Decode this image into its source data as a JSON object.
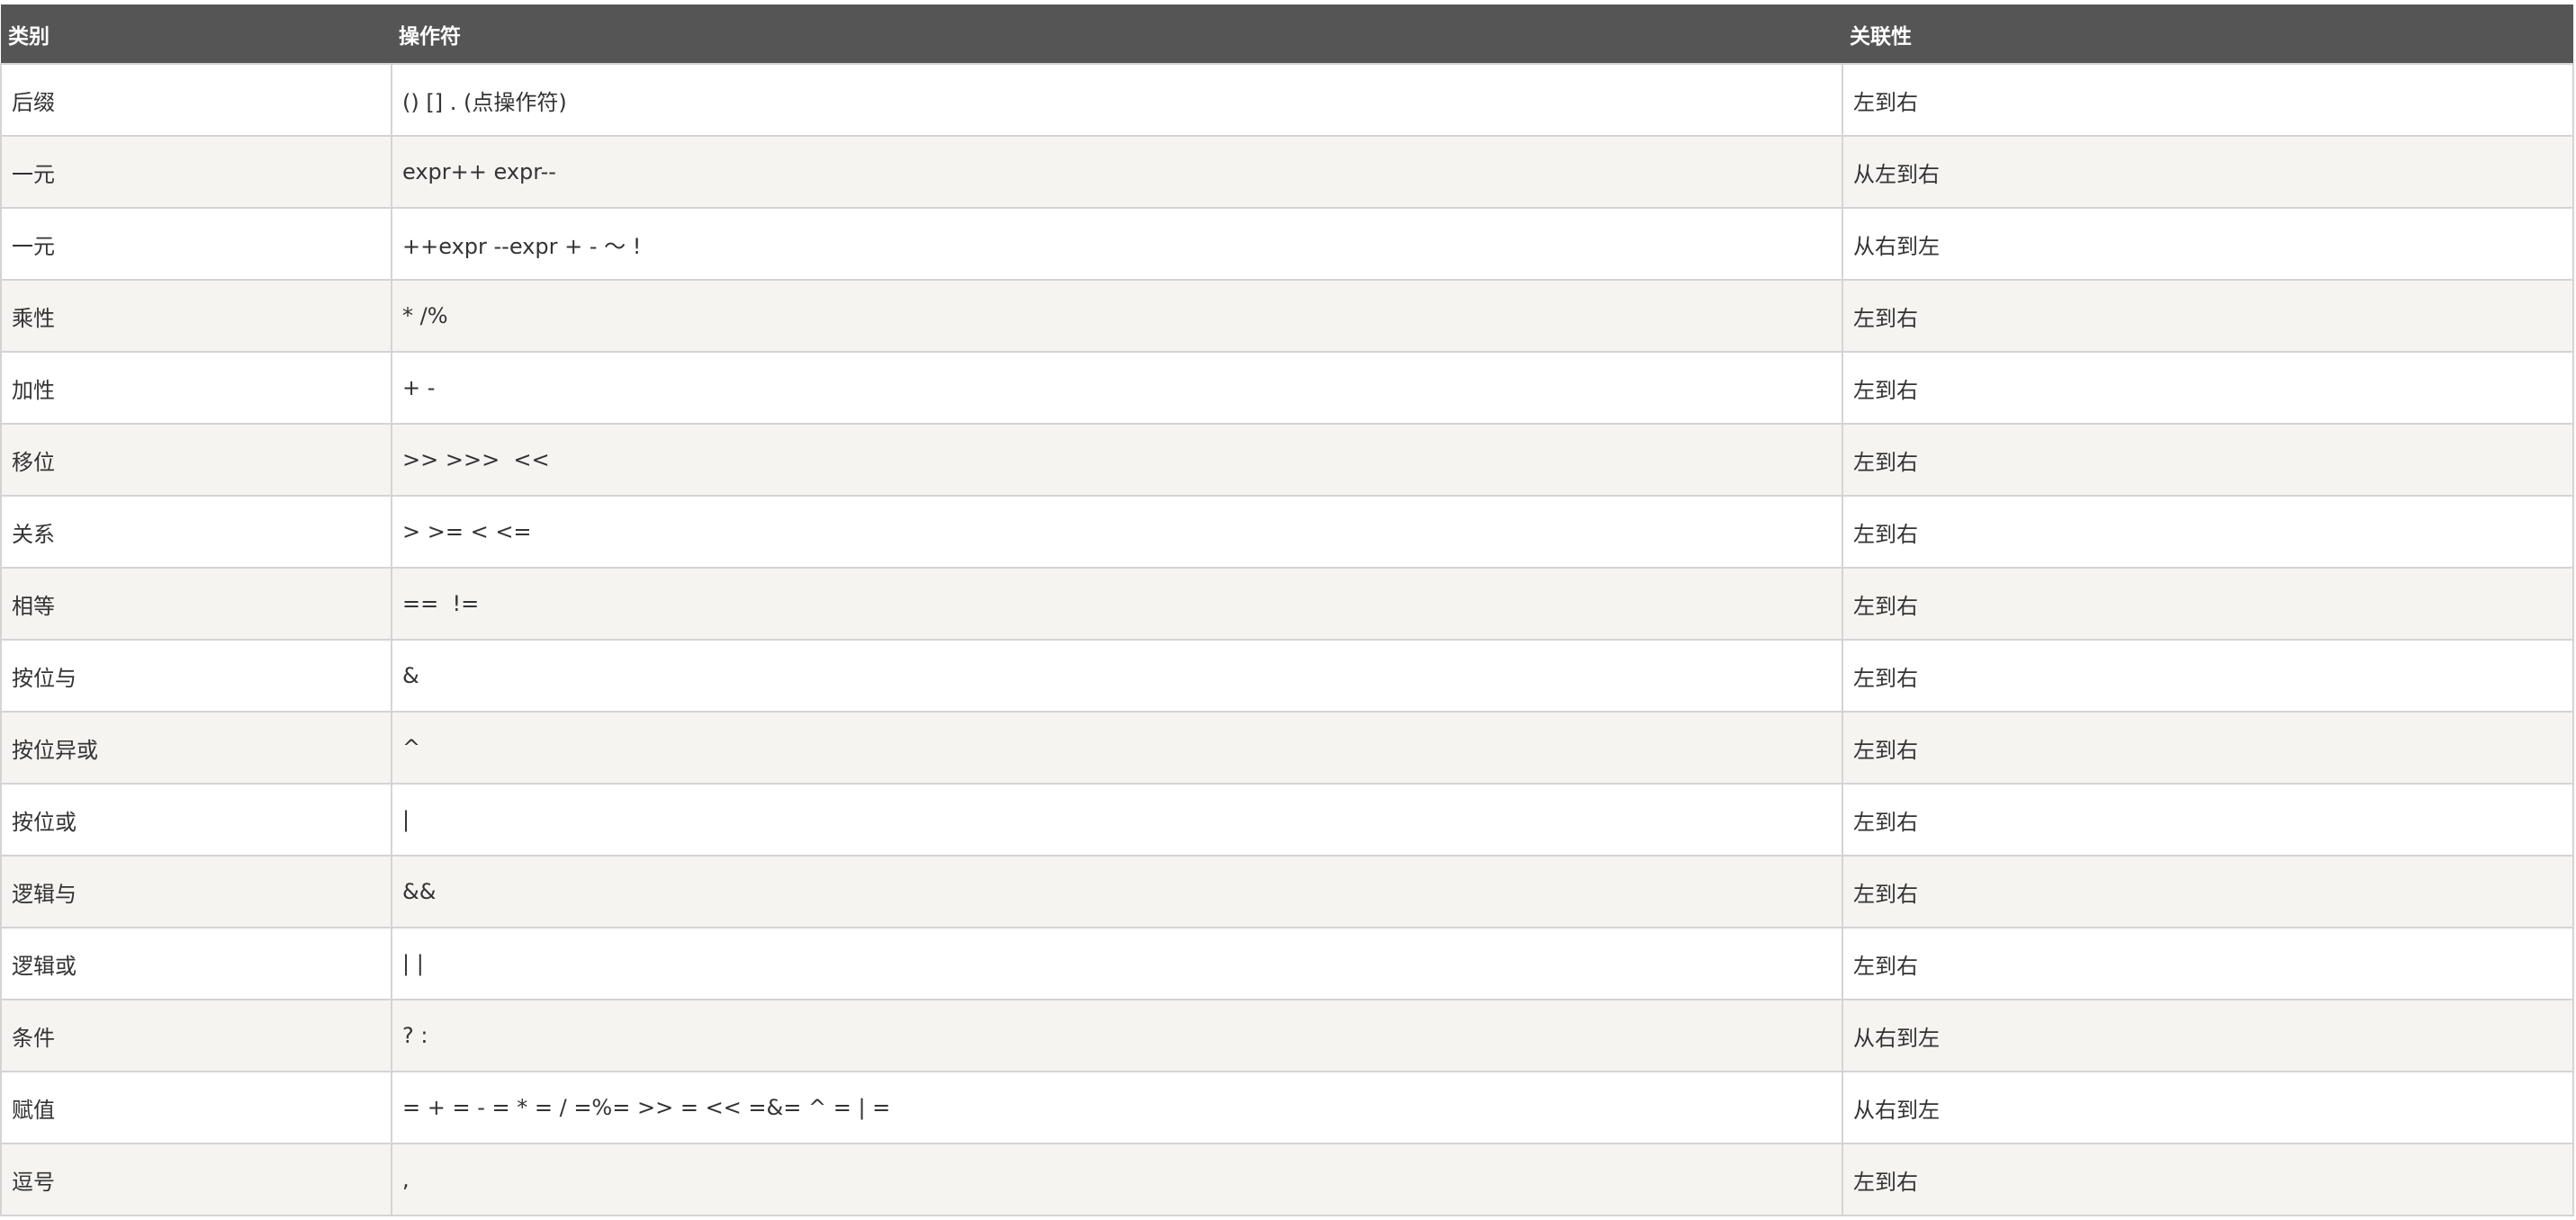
{
  "table": {
    "header": [
      "类别",
      "操作符",
      "关联性"
    ],
    "rows": [
      [
        "后缀",
        "() [] . (点操作符)",
        "左到右"
      ],
      [
        "一元",
        "expr++ expr--",
        "从左到右"
      ],
      [
        "一元",
        "++expr --expr + - ～ !",
        "从右到左"
      ],
      [
        "乘性",
        "* /%",
        "左到右"
      ],
      [
        "加性",
        "+ -",
        "左到右"
      ],
      [
        "移位",
        ">> >>>  <<",
        "左到右"
      ],
      [
        "关系",
        "> >= < <=",
        "左到右"
      ],
      [
        "相等",
        "==  !=",
        "左到右"
      ],
      [
        "按位与",
        "&",
        "左到右"
      ],
      [
        "按位异或",
        "^",
        "左到右"
      ],
      [
        "按位或",
        "|",
        "左到右"
      ],
      [
        "逻辑与",
        "&&",
        "左到右"
      ],
      [
        "逻辑或",
        "| |",
        "左到右"
      ],
      [
        "条件",
        "? :",
        "从右到左"
      ],
      [
        "赋值",
        "= + = - = * = / =%= >> = << =&= ^ = | =",
        "从右到左"
      ],
      [
        "逗号",
        ",",
        "左到右"
      ]
    ]
  }
}
